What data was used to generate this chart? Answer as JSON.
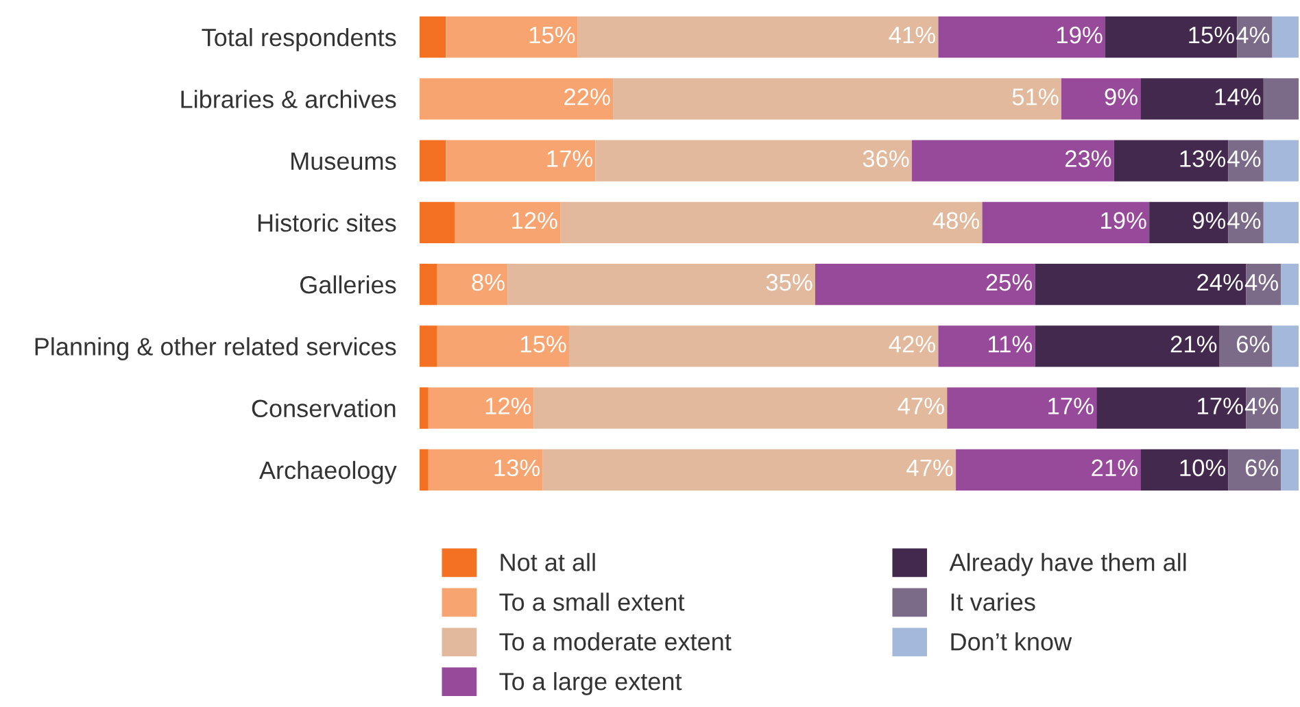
{
  "chart_data": {
    "type": "bar",
    "orientation": "horizontal",
    "stacked": true,
    "categories": [
      "Total respondents",
      "Libraries & archives",
      "Museums",
      "Historic sites",
      "Galleries",
      "Planning & other related services",
      "Conservation",
      "Archaeology"
    ],
    "xlim": [
      0,
      100
    ],
    "tick_labels": "y",
    "grid": false,
    "legend": "bottom",
    "series": [
      {
        "name": "Not at all",
        "color": "#f47124",
        "values": [
          3,
          0,
          3,
          4,
          2,
          2,
          1,
          1
        ],
        "value_labels": [
          null,
          null,
          null,
          null,
          null,
          null,
          null,
          null
        ]
      },
      {
        "name": "To a small extent",
        "color": "#f8a470",
        "values": [
          15,
          22,
          17,
          12,
          8,
          15,
          12,
          13
        ],
        "value_labels": [
          "15%",
          "22%",
          "17%",
          "12%",
          "8%",
          "15%",
          "12%",
          "13%"
        ]
      },
      {
        "name": "To a moderate extent",
        "color": "#e2b99c",
        "values": [
          41,
          51,
          36,
          48,
          35,
          42,
          47,
          47
        ],
        "value_labels": [
          "41%",
          "51%",
          "36%",
          "48%",
          "35%",
          "42%",
          "47%",
          "47%"
        ]
      },
      {
        "name": "To a large extent",
        "color": "#974a99",
        "values": [
          19,
          9,
          23,
          19,
          25,
          11,
          17,
          21
        ],
        "value_labels": [
          "19%",
          "9%",
          "23%",
          "19%",
          "25%",
          "11%",
          "17%",
          "21%"
        ]
      },
      {
        "name": "Already have them all",
        "color": "#43294d",
        "values": [
          15,
          14,
          13,
          9,
          24,
          21,
          17,
          10
        ],
        "value_labels": [
          "15%",
          "14%",
          "13%",
          "9%",
          "24%",
          "21%",
          "17%",
          "10%"
        ]
      },
      {
        "name": "It varies",
        "color": "#7b6b89",
        "values": [
          4,
          4,
          4,
          4,
          4,
          6,
          4,
          6
        ],
        "value_labels": [
          "4%",
          null,
          "4%",
          "4%",
          "4%",
          "6%",
          "4%",
          "6%"
        ]
      },
      {
        "name": "Don’t know",
        "color": "#a3b8da",
        "values": [
          3,
          0,
          4,
          4,
          2,
          3,
          2,
          2
        ],
        "value_labels": [
          null,
          null,
          null,
          null,
          null,
          null,
          null,
          null
        ]
      }
    ]
  }
}
